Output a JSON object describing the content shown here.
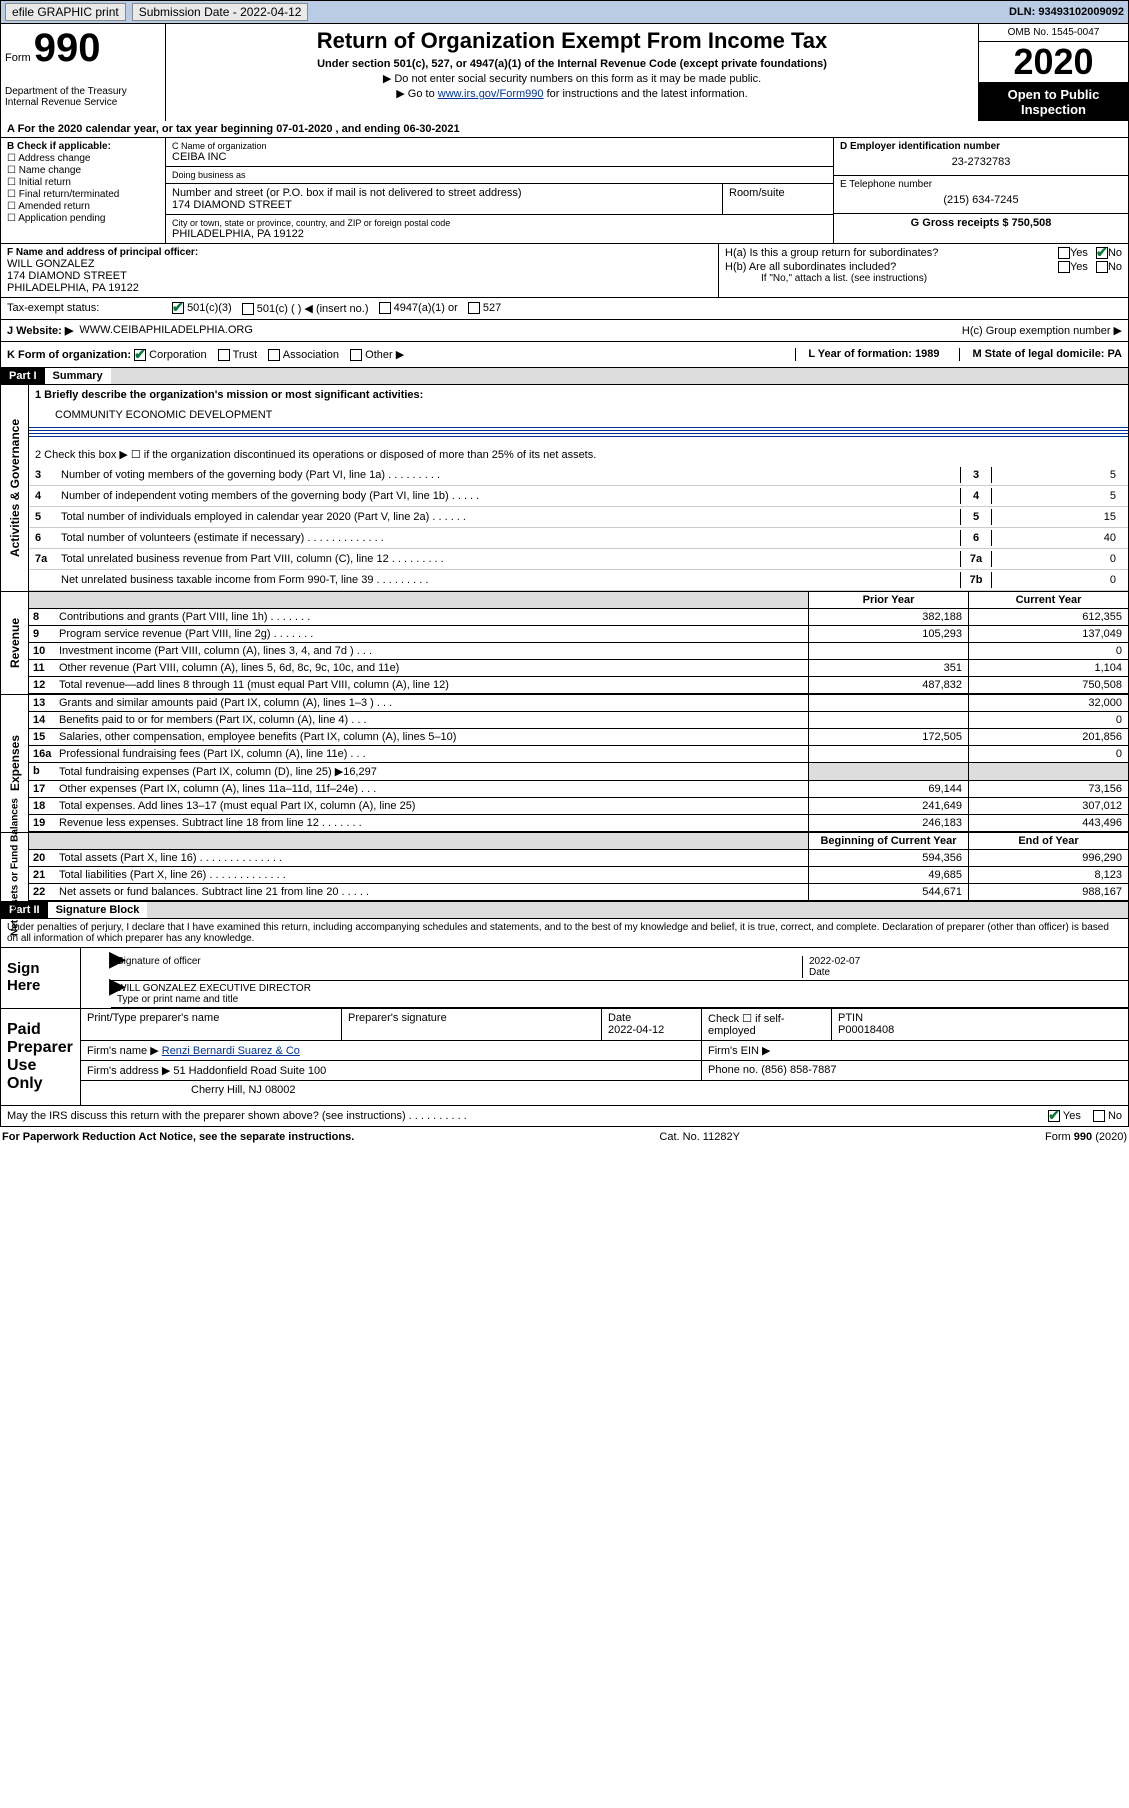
{
  "topbar": {
    "efile": "efile GRAPHIC print",
    "submission_label": "Submission Date - 2022-04-12",
    "dln_label": "DLN: 93493102009092"
  },
  "header": {
    "form_word": "Form",
    "form_num": "990",
    "dept": "Department of the Treasury\nInternal Revenue Service",
    "title": "Return of Organization Exempt From Income Tax",
    "subtitle": "Under section 501(c), 527, or 4947(a)(1) of the Internal Revenue Code (except private foundations)",
    "note1": "▶ Do not enter social security numbers on this form as it may be made public.",
    "note2_pre": "▶ Go to ",
    "note2_link": "www.irs.gov/Form990",
    "note2_post": " for instructions and the latest information.",
    "omb": "OMB No. 1545-0047",
    "year": "2020",
    "inspection": "Open to Public Inspection"
  },
  "yearline": "A For the 2020 calendar year, or tax year beginning 07-01-2020   , and ending 06-30-2021",
  "boxB": {
    "label": "B Check if applicable:",
    "items": [
      "Address change",
      "Name change",
      "Initial return",
      "Final return/terminated",
      "Amended return",
      "Application pending"
    ]
  },
  "boxC": {
    "name_label": "C Name of organization",
    "name": "CEIBA INC",
    "dba_label": "Doing business as",
    "dba": "",
    "street_label": "Number and street (or P.O. box if mail is not delivered to street address)",
    "street": "174 DIAMOND STREET",
    "room_label": "Room/suite",
    "room": "",
    "city_label": "City or town, state or province, country, and ZIP or foreign postal code",
    "city": "PHILADELPHIA, PA  19122"
  },
  "boxD": {
    "label": "D Employer identification number",
    "value": "23-2732783"
  },
  "boxE": {
    "label": "E Telephone number",
    "value": "(215) 634-7245"
  },
  "boxG": {
    "label": "G Gross receipts $ 750,508"
  },
  "boxF": {
    "label": "F  Name and address of principal officer:",
    "name": "WILL GONZALEZ",
    "addr1": "174 DIAMOND STREET",
    "addr2": "PHILADELPHIA, PA  19122"
  },
  "boxH": {
    "ha": "H(a)  Is this a group return for subordinates?",
    "hb": "H(b)  Are all subordinates included?",
    "hb_note": "If \"No,\" attach a list. (see instructions)",
    "hc": "H(c)  Group exemption number ▶"
  },
  "taxexempt": {
    "label": "Tax-exempt status:",
    "opt1": "501(c)(3)",
    "opt2": "501(c) (   ) ◀ (insert no.)",
    "opt3": "4947(a)(1) or",
    "opt4": "527"
  },
  "website": {
    "label": "J   Website: ▶",
    "value": "WWW.CEIBAPHILADELPHIA.ORG"
  },
  "krow": {
    "k": "K Form of organization:",
    "corp": "Corporation",
    "trust": "Trust",
    "assoc": "Association",
    "other": "Other ▶",
    "l": "L Year of formation: 1989",
    "m": "M State of legal domicile: PA"
  },
  "part1": {
    "hdr": "Part I",
    "title": "Summary",
    "line1_label": "1  Briefly describe the organization's mission or most significant activities:",
    "line1_val": "COMMUNITY ECONOMIC DEVELOPMENT",
    "line2": "2   Check this box ▶ ☐  if the organization discontinued its operations or disposed of more than 25% of its net assets.",
    "rows": [
      {
        "n": "3",
        "t": "Number of voting members of the governing body (Part VI, line 1a)   .    .    .    .    .    .    .    .    .",
        "b": "3",
        "v": "5"
      },
      {
        "n": "4",
        "t": "Number of independent voting members of the governing body (Part VI, line 1b)  .    .    .    .    .",
        "b": "4",
        "v": "5"
      },
      {
        "n": "5",
        "t": "Total number of individuals employed in calendar year 2020 (Part V, line 2a)   .    .    .    .    .    .",
        "b": "5",
        "v": "15"
      },
      {
        "n": "6",
        "t": "Total number of volunteers (estimate if necessary)   .    .    .    .    .    .    .    .    .    .    .    .    .",
        "b": "6",
        "v": "40"
      },
      {
        "n": "7a",
        "t": "Total unrelated business revenue from Part VIII, column (C), line 12  .    .    .    .    .    .    .    .    .",
        "b": "7a",
        "v": "0"
      },
      {
        "n": "",
        "t": "Net unrelated business taxable income from Form 990-T, line 39   .    .    .    .    .    .    .    .    .",
        "b": "7b",
        "v": "0"
      }
    ]
  },
  "twocol": {
    "hdr_prior": "Prior Year",
    "hdr_current": "Current Year",
    "hdr_bocy": "Beginning of Current Year",
    "hdr_eoy": "End of Year"
  },
  "revenue": [
    {
      "n": "8",
      "t": "Contributions and grants (Part VIII, line 1h)   .    .    .    .    .    .    .",
      "c1": "382,188",
      "c2": "612,355"
    },
    {
      "n": "9",
      "t": "Program service revenue (Part VIII, line 2g)   .    .    .    .    .    .    .",
      "c1": "105,293",
      "c2": "137,049"
    },
    {
      "n": "10",
      "t": "Investment income (Part VIII, column (A), lines 3, 4, and 7d )   .    .    .",
      "c1": "",
      "c2": "0"
    },
    {
      "n": "11",
      "t": "Other revenue (Part VIII, column (A), lines 5, 6d, 8c, 9c, 10c, and 11e)",
      "c1": "351",
      "c2": "1,104"
    },
    {
      "n": "12",
      "t": "Total revenue—add lines 8 through 11 (must equal Part VIII, column (A), line 12)",
      "c1": "487,832",
      "c2": "750,508"
    }
  ],
  "expenses": [
    {
      "n": "13",
      "t": "Grants and similar amounts paid (Part IX, column (A), lines 1–3 )   .    .    .",
      "c1": "",
      "c2": "32,000"
    },
    {
      "n": "14",
      "t": "Benefits paid to or for members (Part IX, column (A), line 4)   .    .    .",
      "c1": "",
      "c2": "0"
    },
    {
      "n": "15",
      "t": "Salaries, other compensation, employee benefits (Part IX, column (A), lines 5–10)",
      "c1": "172,505",
      "c2": "201,856"
    },
    {
      "n": "16a",
      "t": "Professional fundraising fees (Part IX, column (A), line 11e)   .    .    .",
      "c1": "",
      "c2": "0"
    },
    {
      "n": "b",
      "t": "Total fundraising expenses (Part IX, column (D), line 25) ▶16,297",
      "grey": true
    },
    {
      "n": "17",
      "t": "Other expenses (Part IX, column (A), lines 11a–11d, 11f–24e)   .    .    .",
      "c1": "69,144",
      "c2": "73,156"
    },
    {
      "n": "18",
      "t": "Total expenses. Add lines 13–17 (must equal Part IX, column (A), line 25)",
      "c1": "241,649",
      "c2": "307,012"
    },
    {
      "n": "19",
      "t": "Revenue less expenses. Subtract line 18 from line 12   .    .    .    .    .    .    .",
      "c1": "246,183",
      "c2": "443,496"
    }
  ],
  "netassets": [
    {
      "n": "20",
      "t": "Total assets (Part X, line 16)   .    .    .    .    .    .    .    .    .    .    .    .    .    .",
      "c1": "594,356",
      "c2": "996,290"
    },
    {
      "n": "21",
      "t": "Total liabilities (Part X, line 26)   .    .    .    .    .    .    .    .    .    .    .    .    .",
      "c1": "49,685",
      "c2": "8,123"
    },
    {
      "n": "22",
      "t": "Net assets or fund balances. Subtract line 21 from line 20   .    .    .    .    .",
      "c1": "544,671",
      "c2": "988,167"
    }
  ],
  "part2": {
    "hdr": "Part II",
    "title": "Signature Block",
    "decl": "Under penalties of perjury, I declare that I have examined this return, including accompanying schedules and statements, and to the best of my knowledge and belief, it is true, correct, and complete. Declaration of preparer (other than officer) is based on all information of which preparer has any knowledge."
  },
  "sign": {
    "left": "Sign Here",
    "sig_officer": "Signature of officer",
    "date_lbl": "Date",
    "date_val": "2022-02-07",
    "name": "WILL GONZALEZ  EXECUTIVE DIRECTOR",
    "name_lbl": "Type or print name and title"
  },
  "paid": {
    "left": "Paid Preparer Use Only",
    "r1": {
      "c1": "Print/Type preparer's name",
      "c2": "Preparer's signature",
      "c3": "Date\n2022-04-12",
      "c4": "Check ☐ if self-employed",
      "c5": "PTIN\nP00018408"
    },
    "r2": {
      "label": "Firm's name      ▶",
      "val": "Renzi Bernardi Suarez & Co",
      "ein": "Firm's EIN ▶"
    },
    "r3": {
      "label": "Firm's address ▶",
      "val": "51 Haddonfield Road Suite 100",
      "ph": "Phone no. (856) 858-7887"
    },
    "r4": {
      "val": "Cherry Hill, NJ  08002"
    }
  },
  "discuss": "May the IRS discuss this return with the preparer shown above? (see instructions)   .    .    .    .    .    .    .    .    .    .",
  "footer": {
    "left": "For Paperwork Reduction Act Notice, see the separate instructions.",
    "mid": "Cat. No. 11282Y",
    "right": "Form 990 (2020)"
  },
  "side_labels": {
    "ag": "Activities & Governance",
    "rev": "Revenue",
    "exp": "Expenses",
    "na": "Net Assets or Fund Balances"
  },
  "yesno": {
    "yes": "Yes",
    "no": "No"
  }
}
